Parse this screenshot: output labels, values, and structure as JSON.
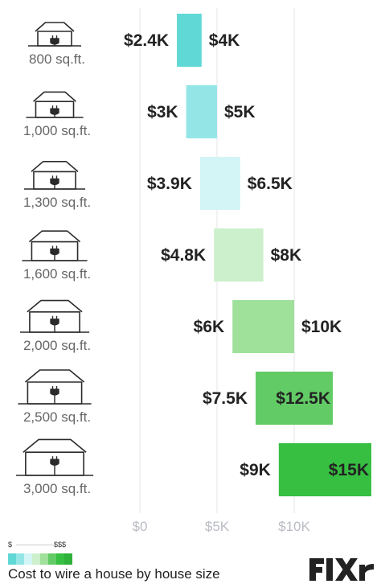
{
  "chart_data": {
    "type": "bar",
    "subtype": "floating-range-bar",
    "orientation": "horizontal",
    "categories": [
      "800 sq.ft.",
      "1,000 sq.ft.",
      "1,300 sq.ft.",
      "1,600 sq.ft.",
      "2,000 sq.ft.",
      "2,500 sq.ft.",
      "3,000 sq.ft."
    ],
    "low": [
      2400,
      3000,
      3900,
      4800,
      6000,
      7500,
      9000
    ],
    "high": [
      4000,
      5000,
      6500,
      8000,
      10000,
      12500,
      15000
    ],
    "low_labels": [
      "$2.4K",
      "$3K",
      "$3.9K",
      "$4.8K",
      "$6K",
      "$7.5K",
      "$9K"
    ],
    "high_labels": [
      "$4K",
      "$5K",
      "$6.5K",
      "$8K",
      "$10K",
      "$12.5K",
      "$15K"
    ],
    "colors": [
      "#5fd8d6",
      "#94e6e6",
      "#d4f5f6",
      "#ccefcc",
      "#9fe09a",
      "#63cb66",
      "#37bf42"
    ],
    "x_ticks": [
      0,
      5000,
      10000
    ],
    "x_tick_labels": [
      "$0",
      "$5K",
      "$10K"
    ],
    "xlim": [
      0,
      15000
    ],
    "grid": true,
    "title": "Cost to wire a house by house size"
  },
  "legend": {
    "low_label": "$",
    "high_label": "$$$",
    "swatches": [
      "#5fd8d6",
      "#94e6e6",
      "#d4f5f6",
      "#ccefcc",
      "#9fe09a",
      "#63cb66",
      "#37bf42",
      "#2fb13a"
    ]
  },
  "brand": {
    "name": "FIXR",
    "color": "#222222"
  }
}
